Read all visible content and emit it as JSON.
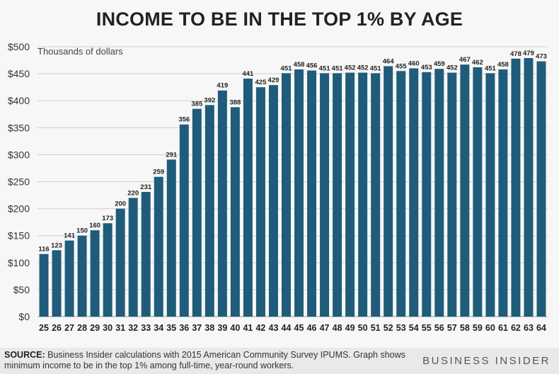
{
  "title": "INCOME TO BE IN THE TOP 1% BY AGE",
  "footer": {
    "source_label": "SOURCE:",
    "source_text": "Business Insider calculations with 2015 American Community Survey IPUMS. Graph shows minimum income to be in the top 1% among full-time, year-round workers.",
    "brand": "BUSINESS INSIDER"
  },
  "colors": {
    "bar": "#1f5c7b",
    "grid": "#d0d0d0",
    "text": "#222222"
  },
  "chart_data": {
    "type": "bar",
    "title": "INCOME TO BE IN THE TOP 1% BY AGE",
    "ylabel": "Thousands of dollars",
    "xlabel": "",
    "ylim": [
      0,
      500
    ],
    "yticks": [
      0,
      50,
      100,
      150,
      200,
      250,
      300,
      350,
      400,
      450,
      500
    ],
    "ytick_labels": [
      "$0",
      "$50",
      "$100",
      "$150",
      "$200",
      "$250",
      "$300",
      "$350",
      "$400",
      "$450",
      "$500"
    ],
    "grid": true,
    "categories": [
      "25",
      "26",
      "27",
      "28",
      "29",
      "30",
      "31",
      "32",
      "33",
      "34",
      "35",
      "36",
      "37",
      "38",
      "39",
      "40",
      "41",
      "42",
      "43",
      "44",
      "45",
      "46",
      "47",
      "48",
      "49",
      "50",
      "51",
      "52",
      "53",
      "54",
      "55",
      "56",
      "57",
      "58",
      "59",
      "60",
      "61",
      "62",
      "63",
      "64"
    ],
    "values": [
      116,
      123,
      141,
      150,
      160,
      173,
      200,
      220,
      231,
      259,
      291,
      356,
      385,
      392,
      419,
      388,
      441,
      425,
      429,
      451,
      458,
      456,
      451,
      451,
      452,
      452,
      451,
      464,
      455,
      460,
      453,
      459,
      452,
      467,
      462,
      451,
      458,
      478,
      479,
      473
    ]
  }
}
